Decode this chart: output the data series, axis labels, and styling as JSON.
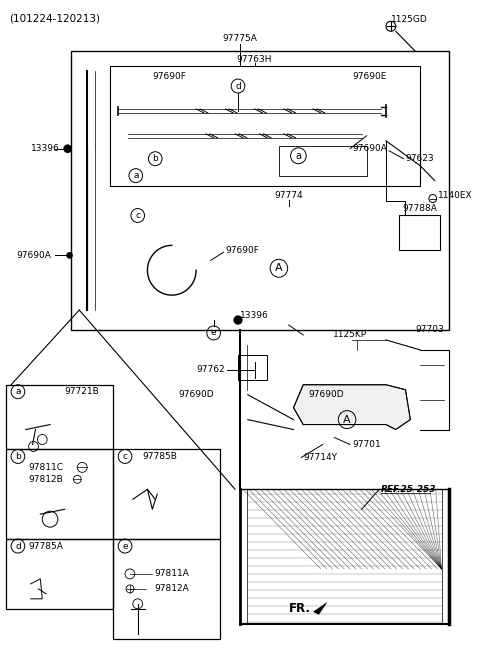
{
  "bg": "#ffffff",
  "fw": 4.8,
  "fh": 6.53,
  "dpi": 100,
  "fs": 6.5,
  "fn": 7.5,
  "labels": {
    "header": "(101224-120213)",
    "97775A": "97775A",
    "1125GD": "1125GD",
    "97763H": "97763H",
    "97690F_a": "97690F",
    "97690E": "97690E",
    "13396_a": "13396",
    "97690A_a": "97690A",
    "97623": "97623",
    "1140EX": "1140EX",
    "97774": "97774",
    "97788A": "97788A",
    "97690F_b": "97690F",
    "13396_b": "13396",
    "1125KP": "1125KP",
    "97703": "97703",
    "97762": "97762",
    "97690D_a": "97690D",
    "97690D_b": "97690D",
    "97701": "97701",
    "97714Y": "97714Y",
    "REF": "REF.25-253",
    "97785B": "97785B",
    "97721B": "97721B",
    "97811C": "97811C",
    "97812B": "97812B",
    "97785A": "97785A",
    "97811A": "97811A",
    "97812A": "97812A",
    "FR": "FR."
  }
}
